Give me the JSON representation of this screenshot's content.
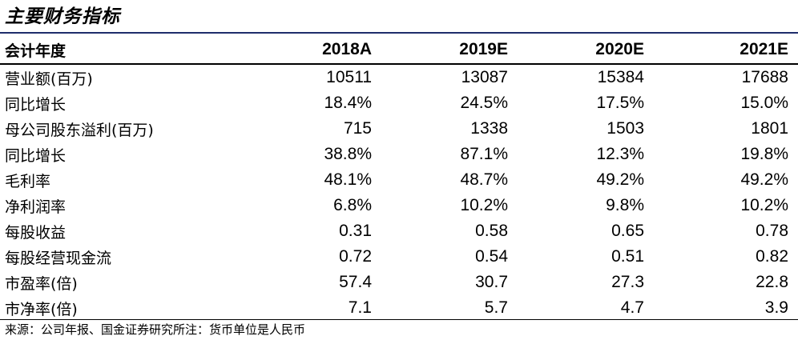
{
  "title": "主要财务指标",
  "table": {
    "header_label": "会计年度",
    "years": [
      "2018A",
      "2019E",
      "2020E",
      "2021E"
    ],
    "rows": [
      {
        "label": "营业额(百万)",
        "values": [
          "10511",
          "13087",
          "15384",
          "17688"
        ]
      },
      {
        "label": "同比增长",
        "values": [
          "18.4%",
          "24.5%",
          "17.5%",
          "15.0%"
        ]
      },
      {
        "label": "母公司股东溢利(百万)",
        "values": [
          "715",
          "1338",
          "1503",
          "1801"
        ]
      },
      {
        "label": "同比增长",
        "values": [
          "38.8%",
          "87.1%",
          "12.3%",
          "19.8%"
        ]
      },
      {
        "label": "毛利率",
        "values": [
          "48.1%",
          "48.7%",
          "49.2%",
          "49.2%"
        ]
      },
      {
        "label": "净利润率",
        "values": [
          "6.8%",
          "10.2%",
          "9.8%",
          "10.2%"
        ]
      },
      {
        "label": "每股收益",
        "values": [
          "0.31",
          "0.58",
          "0.65",
          "0.78"
        ]
      },
      {
        "label": "每股经营现金流",
        "values": [
          "0.72",
          "0.54",
          "0.51",
          "0.82"
        ]
      },
      {
        "label": "市盈率(倍)",
        "values": [
          "57.4",
          "30.7",
          "27.3",
          "22.8"
        ]
      },
      {
        "label": "市净率(倍)",
        "values": [
          "7.1",
          "5.7",
          "4.7",
          "3.9"
        ]
      }
    ]
  },
  "footnote": "来源：公司年报、国金证券研究所注：货币单位是人民币",
  "colors": {
    "title_rule": "#1f2d6b"
  }
}
